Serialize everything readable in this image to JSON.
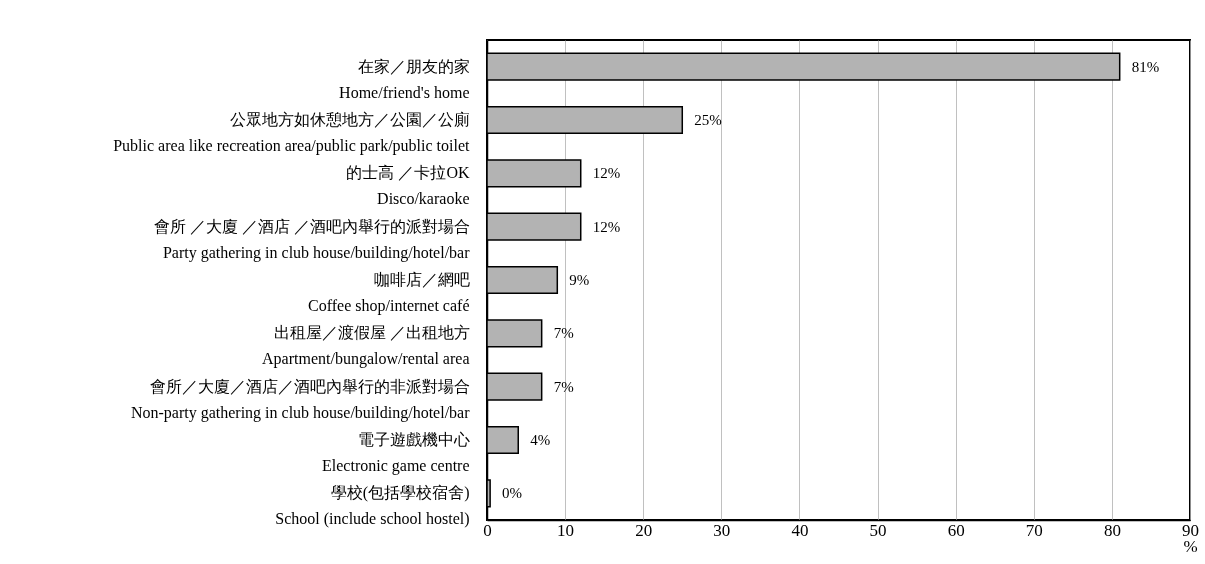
{
  "chart_data": {
    "type": "bar",
    "orientation": "horizontal",
    "categories": [
      "在家／朋友的家\nHome/friend's home",
      "公眾地方如休憩地方／公園／公廁\nPublic area like recreation area/public park/public toilet",
      "的士高 ／卡拉OK\nDisco/karaoke",
      "會所 ／大廈 ／酒店 ／酒吧內舉行的派對場合\nParty gathering in club house/building/hotel/bar",
      "咖啡店／網吧\nCoffee shop/internet café",
      "出租屋／渡假屋 ／出租地方\nApartment/bungalow/rental area",
      "會所／大廈／酒店／酒吧內舉行的非派對場合\nNon-party gathering in club house/building/hotel/bar",
      "電子遊戲機中心\nElectronic game centre",
      "學校(包括學校宿舍)\nSchool (include school hostel)"
    ],
    "values": [
      81,
      25,
      12,
      12,
      9,
      7,
      7,
      4,
      0.4
    ],
    "value_labels": [
      "81%",
      "25%",
      "12%",
      "12%",
      "9%",
      "7%",
      "7%",
      "4%",
      "0%"
    ],
    "color": "#b3b3b3",
    "xlabel": "%",
    "xlim": [
      0,
      90
    ],
    "xticks": [
      0,
      10,
      20,
      30,
      40,
      50,
      60,
      70,
      80,
      90
    ],
    "grid": "x"
  }
}
